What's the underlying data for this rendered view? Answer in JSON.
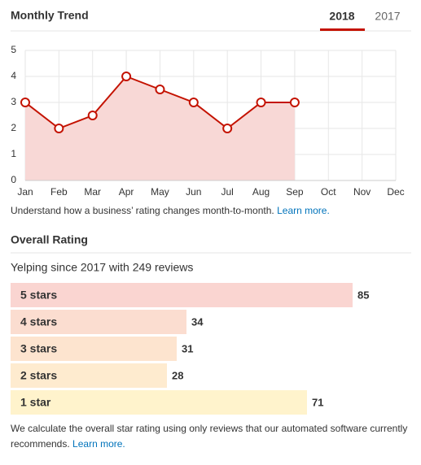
{
  "header": {
    "title": "Monthly Trend",
    "tabs": [
      "2018",
      "2017"
    ]
  },
  "chart_data": [
    {
      "type": "line",
      "categories": [
        "Jan",
        "Feb",
        "Mar",
        "Apr",
        "May",
        "Jun",
        "Jul",
        "Aug",
        "Sep",
        "Oct",
        "Nov",
        "Dec"
      ],
      "values": [
        3,
        2,
        2.5,
        4,
        3.5,
        3,
        2,
        3,
        3,
        null,
        null,
        null
      ],
      "color": "#c41200",
      "fill": "#f8d8d6",
      "ylim": [
        0,
        5
      ],
      "yticks": [
        0,
        1,
        2,
        3,
        4,
        5
      ],
      "grid": true
    },
    {
      "type": "bar",
      "title": "Overall Rating",
      "subtitle": "Yelping since 2017 with 249 reviews",
      "categories": [
        "5 stars",
        "4 stars",
        "3 stars",
        "2 stars",
        "1 star"
      ],
      "values": [
        85,
        34,
        31,
        28,
        71
      ],
      "colors": [
        "#fad5d1",
        "#fbddd0",
        "#fde4cf",
        "#feebcf",
        "#fff3cc"
      ]
    }
  ],
  "trend_note": {
    "text": "Understand how a business’ rating changes month-to-month.",
    "link": "Learn more."
  },
  "footer": {
    "text": "We calculate the overall star rating using only reviews that our automated software currently recommends.",
    "link": "Learn more."
  }
}
